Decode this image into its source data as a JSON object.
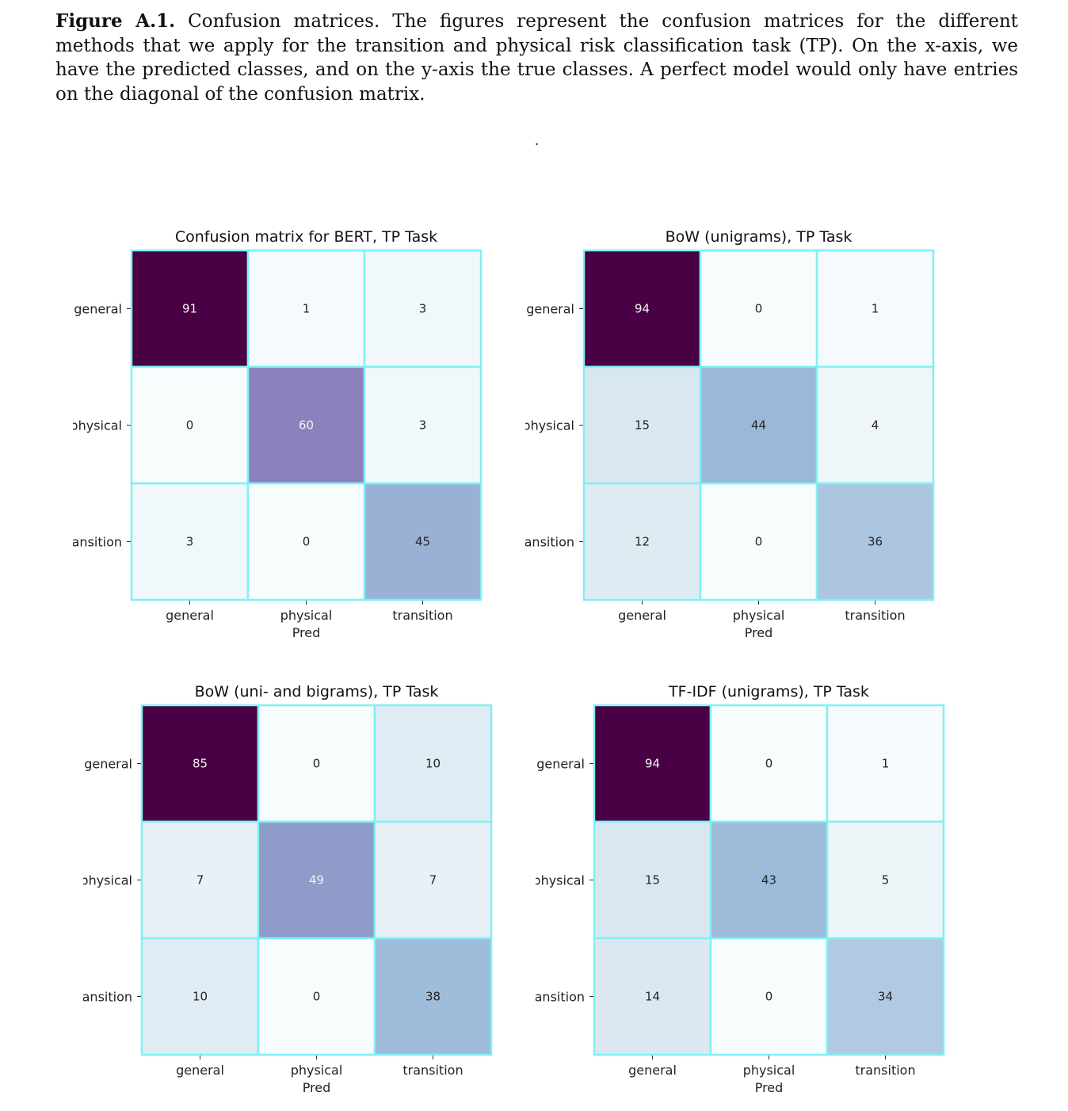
{
  "caption": {
    "label": "Figure A.1.",
    "text": "Confusion matrices. The figures represent the confusion matrices for the different methods that we apply for the transition and physical risk classification task (TP). On the x-axis, we have the predicted classes, and on the y-axis the true classes. A perfect model would only have entries on the diagonal of the confusion matrix."
  },
  "separator": ".",
  "chart_data": [
    {
      "type": "heatmap",
      "title": "Confusion matrix for BERT, TP Task",
      "xlabel": "Pred",
      "ylabel": "",
      "x_categories": [
        "general",
        "physical",
        "transition"
      ],
      "y_categories": [
        "general",
        "physical",
        "transition"
      ],
      "values": [
        [
          91,
          1,
          3
        ],
        [
          0,
          60,
          3
        ],
        [
          3,
          0,
          45
        ]
      ],
      "colormap": "BuPu",
      "grid_color": "#7ff0f5"
    },
    {
      "type": "heatmap",
      "title": "BoW (unigrams), TP Task",
      "xlabel": "Pred",
      "ylabel": "",
      "x_categories": [
        "general",
        "physical",
        "transition"
      ],
      "y_categories": [
        "general",
        "physical",
        "transition"
      ],
      "values": [
        [
          94,
          0,
          1
        ],
        [
          15,
          44,
          4
        ],
        [
          12,
          0,
          36
        ]
      ],
      "colormap": "BuPu",
      "grid_color": "#7ff0f5"
    },
    {
      "type": "heatmap",
      "title": "BoW (uni- and bigrams), TP Task",
      "xlabel": "Pred",
      "ylabel": "",
      "x_categories": [
        "general",
        "physical",
        "transition"
      ],
      "y_categories": [
        "general",
        "physical",
        "transition"
      ],
      "values": [
        [
          85,
          0,
          10
        ],
        [
          7,
          49,
          7
        ],
        [
          10,
          0,
          38
        ]
      ],
      "colormap": "BuPu",
      "grid_color": "#7ff0f5"
    },
    {
      "type": "heatmap",
      "title": "TF-IDF (unigrams), TP Task",
      "xlabel": "Pred",
      "ylabel": "",
      "x_categories": [
        "general",
        "physical",
        "transition"
      ],
      "y_categories": [
        "general",
        "physical",
        "transition"
      ],
      "values": [
        [
          94,
          0,
          1
        ],
        [
          15,
          43,
          5
        ],
        [
          14,
          0,
          34
        ]
      ],
      "colormap": "BuPu",
      "grid_color": "#7ff0f5"
    }
  ]
}
